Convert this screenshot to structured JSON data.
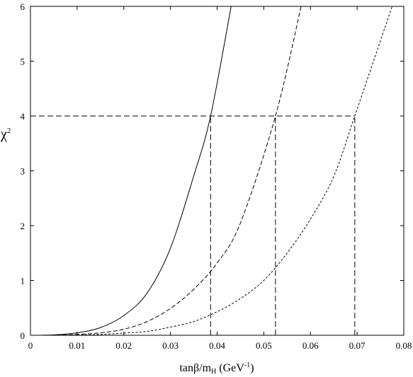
{
  "chart_data": {
    "type": "line",
    "title": "",
    "xlabel": {
      "main": "tanβ/m",
      "sub": "H",
      "unit_open": " (GeV",
      "sup": "-1",
      "unit_close": ")"
    },
    "ylabel": {
      "main": "χ",
      "sup": "2"
    },
    "xlim": [
      0,
      0.08
    ],
    "ylim": [
      0,
      6
    ],
    "xticks": [
      0,
      0.01,
      0.02,
      0.03,
      0.04,
      0.05,
      0.06,
      0.07,
      0.08
    ],
    "xtick_labels": [
      "0",
      "0.01",
      "0.02",
      "0.03",
      "0.04",
      "0.05",
      "0.06",
      "0.07",
      "0.08"
    ],
    "yticks": [
      0,
      1,
      2,
      3,
      4,
      5,
      6
    ],
    "ytick_labels": [
      "0",
      "1",
      "2",
      "3",
      "4",
      "5",
      "6"
    ],
    "grid": false,
    "series": [
      {
        "style": "solid",
        "x": [
          0.0,
          0.005,
          0.01,
          0.015,
          0.02,
          0.025,
          0.03,
          0.035,
          0.0386,
          0.043
        ],
        "y": [
          0.0,
          0.007,
          0.045,
          0.14,
          0.36,
          0.77,
          1.59,
          2.91,
          4.0,
          6.0
        ]
      },
      {
        "style": "dashed",
        "x": [
          0.0,
          0.005,
          0.01,
          0.015,
          0.02,
          0.025,
          0.03,
          0.035,
          0.04,
          0.045,
          0.0525,
          0.058
        ],
        "y": [
          0.0,
          0.003,
          0.015,
          0.045,
          0.11,
          0.25,
          0.49,
          0.84,
          1.32,
          2.05,
          4.0,
          6.0
        ]
      },
      {
        "style": "dotted",
        "x": [
          0.0,
          0.005,
          0.01,
          0.015,
          0.02,
          0.025,
          0.03,
          0.035,
          0.04,
          0.045,
          0.05,
          0.055,
          0.06,
          0.065,
          0.0695,
          0.0775
        ],
        "y": [
          0.0,
          0.001,
          0.005,
          0.015,
          0.04,
          0.07,
          0.15,
          0.25,
          0.43,
          0.67,
          1.0,
          1.5,
          2.12,
          2.9,
          4.0,
          6.0
        ]
      }
    ],
    "reference_lines": {
      "horizontal_y": 4,
      "horizontal_x_range": [
        0,
        0.0695
      ],
      "vertical_x": [
        0.0386,
        0.0525,
        0.0695
      ],
      "vertical_y_range": [
        0,
        4
      ]
    }
  }
}
